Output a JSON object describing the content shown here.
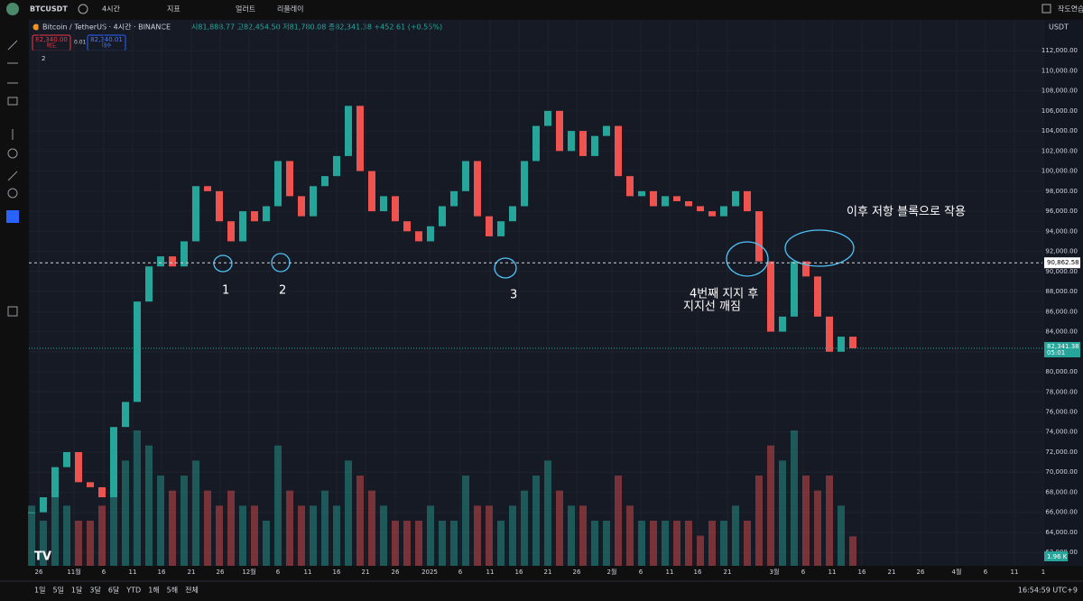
{
  "toolbar": {
    "symbol": "BTCUSDT",
    "interval": "4시간",
    "indicators": "지표",
    "alerts": "얼러트",
    "replay": "리플레이",
    "layout_name": "작도연습"
  },
  "chart_data": {
    "type": "candlestick",
    "title": "Bitcoin / TetherUS · 4시간 · BINANCE",
    "ohlc_text": "시81,888.77 고82,454.50 저81,780.08 종82,341.38 +452.61 (+0.55%)",
    "sell_price": "82,340.00",
    "sell_label": "매도",
    "spread": "0.01",
    "buy_price": "82,340.01",
    "buy_label": "매수",
    "indicator_count": "2",
    "currency": "USDT",
    "closes": [
      66000,
      67500,
      70500,
      72000,
      69000,
      68500,
      67500,
      74500,
      77000,
      87000,
      90500,
      91500,
      90500,
      93000,
      98500,
      98000,
      95000,
      93000,
      96000,
      95000,
      96500,
      101000,
      97500,
      95500,
      98500,
      99500,
      101500,
      106500,
      100000,
      96000,
      97500,
      95000,
      94000,
      93000,
      94500,
      96500,
      98000,
      101000,
      95500,
      93500,
      95000,
      96500,
      101000,
      104500,
      106000,
      102000,
      104000,
      101500,
      103500,
      104500,
      99500,
      97500,
      98000,
      96500,
      97500,
      97000,
      96500,
      96000,
      95500,
      96500,
      98000,
      96000,
      91000,
      84000,
      85500,
      91000,
      89500,
      85500,
      82000,
      83500,
      82341.38
    ],
    "volumes": [
      4,
      3,
      5,
      4,
      3,
      3,
      4,
      6,
      7,
      9,
      8,
      6,
      5,
      6,
      7,
      5,
      4,
      5,
      4,
      4,
      3,
      8,
      5,
      4,
      4,
      5,
      4,
      7,
      6,
      5,
      4,
      3,
      3,
      3,
      4,
      3,
      3,
      6,
      4,
      4,
      3,
      4,
      5,
      6,
      7,
      5,
      4,
      4,
      3,
      3,
      6,
      4,
      3,
      3,
      3,
      3,
      3,
      2,
      3,
      3,
      4,
      3,
      6,
      8,
      7,
      9,
      6,
      5,
      6,
      4,
      1.96
    ],
    "volume_label": "1.96 K",
    "ylim": [
      59500,
      113900
    ],
    "yticks": [
      {
        "value": 62000,
        "label": "62,000.00"
      },
      {
        "value": 64000,
        "label": "64,000.00"
      },
      {
        "value": 66000,
        "label": "66,000.00"
      },
      {
        "value": 68000,
        "label": "68,000.00"
      },
      {
        "value": 70000,
        "label": "70,000.00"
      },
      {
        "value": 72000,
        "label": "72,000.00"
      },
      {
        "value": 74000,
        "label": "74,000.00"
      },
      {
        "value": 76000,
        "label": "76,000.00"
      },
      {
        "value": 78000,
        "label": "78,000.00"
      },
      {
        "value": 80000,
        "label": "80,000.00"
      },
      {
        "value": 82000,
        "label": "82,000.00"
      },
      {
        "value": 84000,
        "label": "84,000.00"
      },
      {
        "value": 86000,
        "label": "86,000.00"
      },
      {
        "value": 88000,
        "label": "88,000.00"
      },
      {
        "value": 90000,
        "label": "90,000.00"
      },
      {
        "value": 92000,
        "label": "92,000.00"
      },
      {
        "value": 94000,
        "label": "94,000.00"
      },
      {
        "value": 96000,
        "label": "96,000.00"
      },
      {
        "value": 98000,
        "label": "98,000.00"
      },
      {
        "value": 100000,
        "label": "100,000.00"
      },
      {
        "value": 102000,
        "label": "102,000.00"
      },
      {
        "value": 104000,
        "label": "104,000.00"
      },
      {
        "value": 106000,
        "label": "106,000.00"
      },
      {
        "value": 108000,
        "label": "108,000.00"
      },
      {
        "value": 110000,
        "label": "110,000.00"
      },
      {
        "value": 112000,
        "label": "112,000.00"
      }
    ],
    "xticks": [
      "26",
      "11월",
      "6",
      "11",
      "16",
      "21",
      "26",
      "12월",
      "6",
      "11",
      "16",
      "21",
      "26",
      "2025",
      "6",
      "11",
      "16",
      "21",
      "26",
      "2월",
      "6",
      "11",
      "16",
      "21",
      "3월",
      "6",
      "11",
      "16",
      "21",
      "26",
      "4월",
      "6",
      "11",
      "1"
    ],
    "support_line": {
      "value": 90862.58,
      "label": "90,862.58"
    },
    "last_price": {
      "value": 82341.38,
      "label": "82,341.38",
      "countdown": "05:01"
    },
    "annotations": [
      "1",
      "2",
      "3",
      "4번째 지지 후",
      "지지선 깨짐",
      "이후 저항 블록으로 작용"
    ]
  },
  "bottom_bar": {
    "ranges": [
      "1일",
      "5일",
      "1달",
      "3달",
      "6달",
      "YTD",
      "1해",
      "5해",
      "전체"
    ],
    "clock": "16:54:59 UTC+9"
  }
}
